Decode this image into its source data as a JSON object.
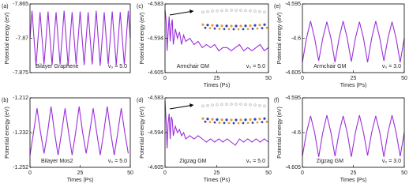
{
  "chart_data": [
    {
      "type": "line",
      "label": "(a)",
      "ylabel": "Potential energy (eV)",
      "annotations": [
        "Bilayer Graphene",
        "v₀ = 5.0"
      ],
      "xlim": [
        0,
        50
      ],
      "ylim": [
        -7.875,
        -7.865
      ],
      "yticks": [
        -7.875,
        -7.87,
        -7.865
      ],
      "x": [
        0,
        1,
        2,
        3,
        4,
        5,
        6,
        7,
        8,
        9,
        10,
        11,
        12,
        13,
        14,
        15,
        16,
        17,
        18,
        19,
        20,
        21,
        22,
        23,
        24,
        25,
        26,
        27,
        28,
        29,
        30,
        31,
        32,
        33,
        34,
        35,
        36,
        37,
        38,
        39,
        40,
        41,
        42,
        43,
        44,
        45,
        46,
        47,
        48,
        49,
        50
      ],
      "series": [
        {
          "color": "#9b30d9",
          "values": [
            -7.87,
            -7.866,
            -7.87,
            -7.874,
            -7.87,
            -7.8662,
            -7.87,
            -7.8738,
            -7.87,
            -7.8661,
            -7.87,
            -7.8739,
            -7.87,
            -7.8662,
            -7.87,
            -7.8738,
            -7.87,
            -7.866,
            -7.87,
            -7.874,
            -7.87,
            -7.8662,
            -7.87,
            -7.8738,
            -7.87,
            -7.8661,
            -7.87,
            -7.8739,
            -7.87,
            -7.8662,
            -7.87,
            -7.8738,
            -7.87,
            -7.866,
            -7.87,
            -7.874,
            -7.87,
            -7.8662,
            -7.87,
            -7.8738,
            -7.87,
            -7.8661,
            -7.87,
            -7.8739,
            -7.87,
            -7.8662,
            -7.87,
            -7.8738,
            -7.87,
            -7.866,
            -7.87
          ]
        }
      ]
    },
    {
      "type": "line",
      "label": "(b)",
      "ylabel": "Potential energy (eV)",
      "xlabel": "Times (Ps)",
      "annotations": [
        "Bilayer Mos2",
        "v₀ = 5.0"
      ],
      "xlim": [
        0,
        50
      ],
      "xticks": [
        0,
        25,
        50
      ],
      "ylim": [
        -1.252,
        -1.212
      ],
      "yticks": [
        -1.252,
        -1.232,
        -1.212
      ],
      "x": [
        0,
        1.75,
        3.5,
        5.25,
        7,
        8.75,
        10.5,
        12.25,
        14,
        15.75,
        17.5,
        19.25,
        21,
        22.75,
        24.5,
        26.25,
        28,
        29.75,
        31.5,
        33.25,
        35,
        36.75,
        38.5,
        40.25,
        42,
        43.75,
        45.5,
        47.25,
        49
      ],
      "series": [
        {
          "color": "#9b30d9",
          "values": [
            -1.245,
            -1.232,
            -1.218,
            -1.232,
            -1.244,
            -1.232,
            -1.217,
            -1.232,
            -1.245,
            -1.232,
            -1.218,
            -1.232,
            -1.245,
            -1.232,
            -1.217,
            -1.232,
            -1.244,
            -1.232,
            -1.218,
            -1.232,
            -1.245,
            -1.232,
            -1.217,
            -1.232,
            -1.245,
            -1.232,
            -1.218,
            -1.232,
            -1.244
          ]
        }
      ]
    },
    {
      "type": "line",
      "label": "(c)",
      "ylabel": "Potential energy (eV)",
      "xlabel": "Times (Ps)",
      "annotations": [
        "Armchair GM",
        "v₀ = 5.0"
      ],
      "inset": true,
      "xlim": [
        0,
        50
      ],
      "xticks": [
        0,
        25,
        50
      ],
      "ylim": [
        -4.605,
        -4.583
      ],
      "yticks": [
        -4.605,
        -4.594,
        -4.583
      ],
      "x": [
        0,
        0.5,
        1,
        1.5,
        2,
        2.5,
        3,
        3.5,
        4,
        5,
        6,
        7,
        8,
        9,
        10,
        12,
        14,
        16,
        18,
        20,
        22,
        24,
        26,
        28,
        30,
        32,
        34,
        36,
        38,
        40,
        42,
        44,
        46,
        48,
        50
      ],
      "series": [
        {
          "color": "#9b30d9",
          "values": [
            -4.585,
            -4.588,
            -4.598,
            -4.592,
            -4.587,
            -4.595,
            -4.59,
            -4.588,
            -4.596,
            -4.591,
            -4.594,
            -4.592,
            -4.596,
            -4.593,
            -4.595,
            -4.594,
            -4.596,
            -4.595,
            -4.597,
            -4.596,
            -4.597,
            -4.596,
            -4.598,
            -4.597,
            -4.597,
            -4.598,
            -4.597,
            -4.596,
            -4.598,
            -4.597,
            -4.598,
            -4.597,
            -4.596,
            -4.598,
            -4.597
          ]
        }
      ]
    },
    {
      "type": "line",
      "label": "(d)",
      "ylabel": "Potential energy (eV)",
      "xlabel": "Times (Ps)",
      "annotations": [
        "Zigzag GM",
        "v₀ = 5.0"
      ],
      "inset": true,
      "xlim": [
        0,
        50
      ],
      "xticks": [
        0,
        25,
        50
      ],
      "ylim": [
        -4.605,
        -4.583
      ],
      "yticks": [
        -4.605,
        -4.594,
        -4.583
      ],
      "x": [
        0,
        0.5,
        1,
        1.5,
        2,
        2.5,
        3,
        3.5,
        4,
        5,
        6,
        7,
        8,
        9,
        10,
        12,
        14,
        16,
        18,
        20,
        22,
        24,
        26,
        28,
        30,
        32,
        34,
        36,
        38,
        40,
        42,
        44,
        46,
        48,
        50
      ],
      "series": [
        {
          "color": "#9b30d9",
          "values": [
            -4.584,
            -4.59,
            -4.599,
            -4.591,
            -4.588,
            -4.596,
            -4.589,
            -4.59,
            -4.595,
            -4.592,
            -4.594,
            -4.593,
            -4.595,
            -4.594,
            -4.596,
            -4.595,
            -4.596,
            -4.595,
            -4.596,
            -4.597,
            -4.596,
            -4.597,
            -4.596,
            -4.597,
            -4.596,
            -4.597,
            -4.598,
            -4.596,
            -4.597,
            -4.596,
            -4.597,
            -4.596,
            -4.597,
            -4.596,
            -4.597
          ]
        }
      ]
    },
    {
      "type": "line",
      "label": "(e)",
      "ylabel": "Potential energy (eV)",
      "xlabel": "Times (Ps)",
      "annotations": [
        "Armchair GM",
        "v₀ = 3.0"
      ],
      "xlim": [
        0,
        50
      ],
      "xticks": [
        0,
        25,
        50
      ],
      "ylim": [
        -4.605,
        -4.595
      ],
      "yticks": [
        -4.605,
        -4.6,
        -4.595
      ],
      "x": [
        0,
        2,
        4,
        6,
        8,
        10,
        12,
        14,
        16,
        18,
        20,
        22,
        24,
        26,
        28,
        30,
        32,
        34,
        36,
        38,
        40,
        42,
        44,
        46,
        48,
        50
      ],
      "series": [
        {
          "color": "#9b30d9",
          "values": [
            -4.6035,
            -4.6,
            -4.5975,
            -4.6,
            -4.6033,
            -4.6,
            -4.5976,
            -4.6,
            -4.6035,
            -4.6,
            -4.5975,
            -4.6,
            -4.6034,
            -4.6,
            -4.5976,
            -4.6,
            -4.6035,
            -4.6,
            -4.5975,
            -4.6,
            -4.6033,
            -4.6,
            -4.5976,
            -4.6,
            -4.6035,
            -4.6
          ]
        }
      ]
    },
    {
      "type": "line",
      "label": "(f)",
      "ylabel": "Potential energy (eV)",
      "xlabel": "Times (Ps)",
      "annotations": [
        "Zigzag GM",
        "v₀ = 3.0"
      ],
      "xlim": [
        0,
        50
      ],
      "xticks": [
        0,
        25,
        50
      ],
      "ylim": [
        -4.605,
        -4.595
      ],
      "yticks": [
        -4.605,
        -4.6,
        -4.595
      ],
      "x": [
        0,
        2,
        4,
        6,
        8,
        10,
        12,
        14,
        16,
        18,
        20,
        22,
        24,
        26,
        28,
        30,
        32,
        34,
        36,
        38,
        40,
        42,
        44,
        46,
        48,
        50
      ],
      "series": [
        {
          "color": "#9b30d9",
          "values": [
            -4.6034,
            -4.6,
            -4.5976,
            -4.6,
            -4.6035,
            -4.6,
            -4.5975,
            -4.6,
            -4.6034,
            -4.6,
            -4.5976,
            -4.6,
            -4.6035,
            -4.6,
            -4.5975,
            -4.6,
            -4.6033,
            -4.6,
            -4.5976,
            -4.6,
            -4.6035,
            -4.6,
            -4.5975,
            -4.6,
            -4.6034,
            -4.6
          ]
        }
      ]
    }
  ]
}
